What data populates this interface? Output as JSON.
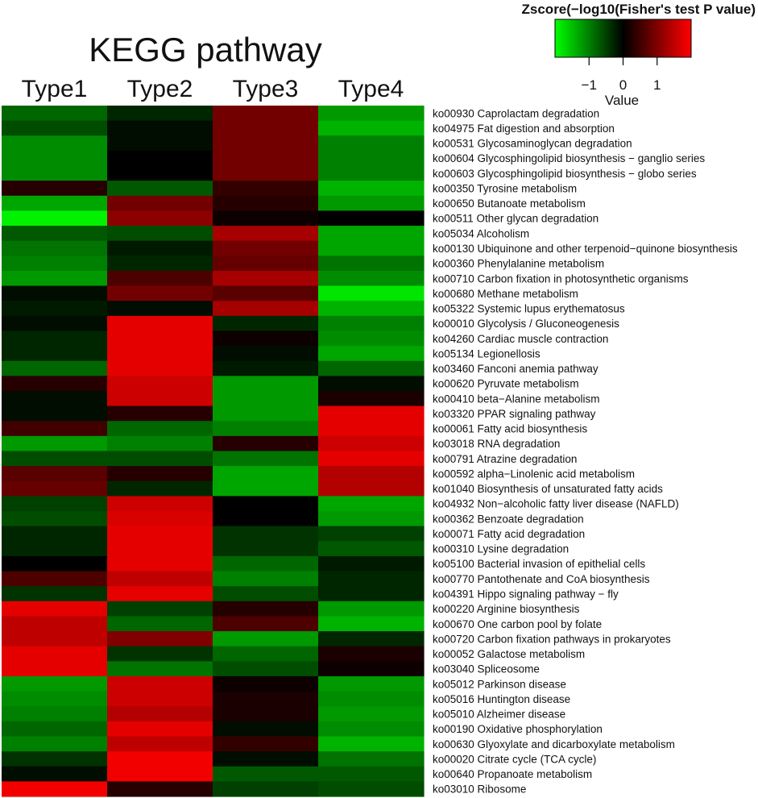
{
  "chart_data": {
    "type": "heatmap",
    "title": "KEGG pathway",
    "columns": [
      "Type1",
      "Type2",
      "Type3",
      "Type4"
    ],
    "rows": [
      "ko00930 Caprolactam degradation",
      "ko04975 Fat digestion and absorption",
      "ko00531 Glycosaminoglycan degradation",
      "ko00604 Glycosphingolipid biosynthesis − ganglio series",
      "ko00603 Glycosphingolipid biosynthesis − globo series",
      "ko00350 Tyrosine metabolism",
      "ko00650 Butanoate metabolism",
      "ko00511 Other glycan degradation",
      "ko05034 Alcoholism",
      "ko00130 Ubiquinone and other terpenoid−quinone biosynthesis",
      "ko00360 Phenylalanine metabolism",
      "ko00710 Carbon fixation in photosynthetic organisms",
      "ko00680 Methane metabolism",
      "ko05322 Systemic lupus erythematosus",
      "ko00010 Glycolysis / Gluconeogenesis",
      "ko04260 Cardiac muscle contraction",
      "ko05134 Legionellosis",
      "ko03460 Fanconi anemia pathway",
      "ko00620 Pyruvate metabolism",
      "ko00410 beta−Alanine metabolism",
      "ko03320 PPAR signaling pathway",
      "ko00061 Fatty acid biosynthesis",
      "ko03018 RNA degradation",
      "ko00791 Atrazine degradation",
      "ko00592 alpha−Linolenic acid metabolism",
      "ko01040 Biosynthesis of unsaturated fatty acids",
      "ko04932 Non−alcoholic fatty liver disease (NAFLD)",
      "ko00362 Benzoate degradation",
      "ko00071 Fatty acid degradation",
      "ko00310 Lysine degradation",
      "ko05100 Bacterial invasion of epithelial cells",
      "ko00770 Pantothenate and CoA biosynthesis",
      "ko04391 Hippo signaling pathway − fly",
      "ko00220 Arginine biosynthesis",
      "ko00670 One carbon pool by folate",
      "ko00720 Carbon fixation pathways in prokaryotes",
      "ko00052 Galactose metabolism",
      "ko03040 Spliceosome",
      "ko05012 Parkinson disease",
      "ko05016 Huntington disease",
      "ko05010 Alzheimer disease",
      "ko00190 Oxidative phosphorylation",
      "ko00630 Glyoxylate and dicarboxylate metabolism",
      "ko00020 Citrate cycle (TCA cycle)",
      "ko00640 Propanoate metabolism",
      "ko03010 Ribosome"
    ],
    "values": [
      [
        -0.8,
        -0.3,
        0.9,
        -1.2
      ],
      [
        -0.6,
        -0.1,
        0.9,
        -1.4
      ],
      [
        -1.1,
        -0.1,
        0.9,
        -1.0
      ],
      [
        -1.1,
        0.0,
        0.9,
        -1.0
      ],
      [
        -1.1,
        0.0,
        0.9,
        -1.0
      ],
      [
        0.3,
        -0.7,
        0.4,
        -1.4
      ],
      [
        -1.3,
        0.9,
        0.3,
        -1.2
      ],
      [
        -1.9,
        1.1,
        0.1,
        0.0
      ],
      [
        -0.7,
        -0.6,
        1.3,
        -1.3
      ],
      [
        -0.9,
        -0.2,
        0.9,
        -1.3
      ],
      [
        -1.0,
        -0.3,
        0.8,
        -0.9
      ],
      [
        -1.2,
        0.6,
        1.3,
        -1.1
      ],
      [
        -0.1,
        0.9,
        0.7,
        -1.8
      ],
      [
        -0.2,
        -0.1,
        1.3,
        -1.4
      ],
      [
        -0.1,
        1.8,
        -0.3,
        -1.0
      ],
      [
        -0.3,
        1.8,
        0.1,
        -1.1
      ],
      [
        -0.3,
        1.8,
        -0.1,
        -1.3
      ],
      [
        -0.8,
        1.8,
        -0.2,
        -0.8
      ],
      [
        0.3,
        1.6,
        -1.2,
        -0.1
      ],
      [
        -0.1,
        1.6,
        -1.2,
        0.2
      ],
      [
        -0.1,
        0.3,
        -1.2,
        1.8
      ],
      [
        0.5,
        -0.8,
        -1.0,
        1.8
      ],
      [
        -1.2,
        -1.0,
        0.3,
        1.6
      ],
      [
        -0.6,
        -0.6,
        -0.9,
        1.8
      ],
      [
        0.7,
        0.3,
        -1.3,
        1.4
      ],
      [
        0.8,
        -0.3,
        -1.3,
        1.4
      ],
      [
        -0.5,
        1.6,
        0.0,
        -1.3
      ],
      [
        -0.6,
        1.7,
        0.0,
        -1.2
      ],
      [
        -0.3,
        1.8,
        -0.4,
        -0.5
      ],
      [
        -0.3,
        1.8,
        -0.4,
        -0.7
      ],
      [
        0.0,
        1.8,
        -0.8,
        -0.2
      ],
      [
        0.6,
        1.5,
        -1.0,
        -0.3
      ],
      [
        -0.4,
        1.8,
        -0.6,
        -0.3
      ],
      [
        1.8,
        -0.5,
        0.3,
        -1.2
      ],
      [
        1.5,
        -0.8,
        0.6,
        -1.4
      ],
      [
        1.5,
        1.0,
        -1.2,
        -0.3
      ],
      [
        1.8,
        -0.4,
        -0.8,
        0.2
      ],
      [
        1.8,
        -0.9,
        -0.6,
        0.1
      ],
      [
        -1.2,
        1.6,
        0.1,
        -1.2
      ],
      [
        -1.1,
        1.6,
        0.2,
        -1.1
      ],
      [
        -1.0,
        1.4,
        0.2,
        -1.2
      ],
      [
        -0.8,
        1.8,
        -0.1,
        -1.1
      ],
      [
        -1.0,
        1.5,
        0.4,
        -1.4
      ],
      [
        -0.4,
        1.9,
        -0.1,
        -0.9
      ],
      [
        -0.1,
        1.9,
        -0.7,
        -0.7
      ],
      [
        1.9,
        0.3,
        -0.5,
        -0.6
      ]
    ],
    "color_scale": {
      "low": "#00ff00",
      "mid": "#000000",
      "high": "#ff0000",
      "min": -2,
      "max": 2
    },
    "legend": {
      "title": "Zscore(−log10(Fisher's test P value)",
      "label": "Value",
      "ticks": [
        -1,
        0,
        1
      ],
      "tick_labels": [
        "−1",
        "0",
        "1"
      ],
      "placement": "top-right"
    }
  }
}
